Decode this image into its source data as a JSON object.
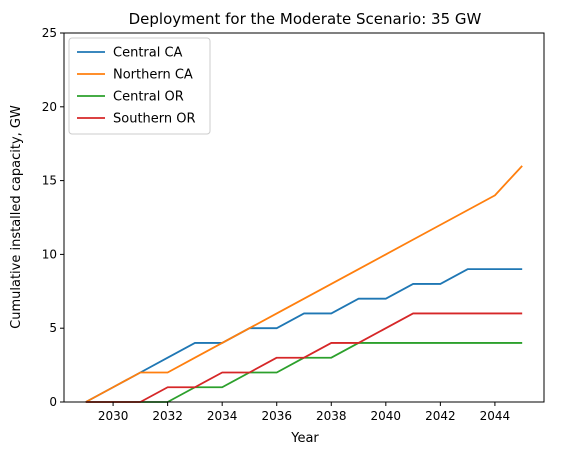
{
  "chart_data": {
    "type": "line",
    "title": "Deployment for the Moderate Scenario: 35 GW",
    "xlabel": "Year",
    "ylabel": "Cumulative installed capacity, GW",
    "xlim": [
      2028.2,
      2045.8
    ],
    "ylim": [
      0,
      25
    ],
    "x_ticks": [
      2030,
      2032,
      2034,
      2036,
      2038,
      2040,
      2042,
      2044
    ],
    "y_ticks": [
      0,
      5,
      10,
      15,
      20,
      25
    ],
    "grid": false,
    "legend_position": "top-left",
    "x": [
      2029,
      2030,
      2031,
      2032,
      2033,
      2034,
      2035,
      2036,
      2037,
      2038,
      2039,
      2040,
      2041,
      2042,
      2043,
      2044,
      2045
    ],
    "series": [
      {
        "name": "Central CA",
        "color": "#1f77b4",
        "values": [
          0,
          1,
          2,
          3,
          4,
          4,
          5,
          5,
          6,
          6,
          7,
          7,
          8,
          8,
          9,
          9,
          9
        ]
      },
      {
        "name": "Northern CA",
        "color": "#ff7f0e",
        "values": [
          0,
          1,
          2,
          2,
          3,
          4,
          5,
          6,
          7,
          8,
          9,
          10,
          11,
          12,
          13,
          14,
          16
        ]
      },
      {
        "name": "Central OR",
        "color": "#2ca02c",
        "values": [
          0,
          0,
          0,
          0,
          1,
          1,
          2,
          2,
          3,
          3,
          4,
          4,
          4,
          4,
          4,
          4,
          4
        ]
      },
      {
        "name": "Southern OR",
        "color": "#d62728",
        "values": [
          0,
          0,
          0,
          1,
          1,
          2,
          2,
          3,
          3,
          4,
          4,
          5,
          6,
          6,
          6,
          6,
          6
        ]
      }
    ]
  }
}
